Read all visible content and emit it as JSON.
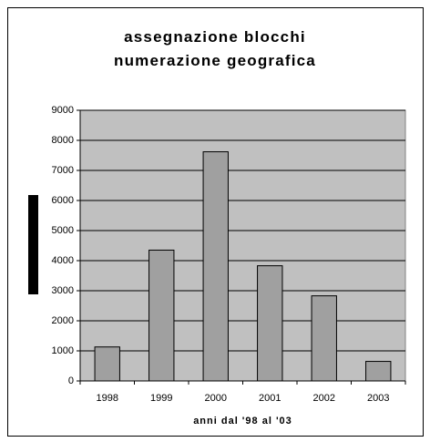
{
  "chart_data": {
    "type": "bar",
    "title": "assegnazione blocchi numerazione geografica",
    "x_label": "anni dal '98 al '03",
    "categories": [
      "1998",
      "1999",
      "2000",
      "2001",
      "2002",
      "2003"
    ],
    "values": [
      1130,
      4350,
      7620,
      3830,
      2830,
      650
    ],
    "color": "#a0a0a0",
    "plot_background": "#c0c0c0",
    "ylim": [
      0,
      9000
    ],
    "yticks": [
      0,
      1000,
      2000,
      3000,
      4000,
      5000,
      6000,
      7000,
      8000,
      9000
    ],
    "grid": true
  }
}
